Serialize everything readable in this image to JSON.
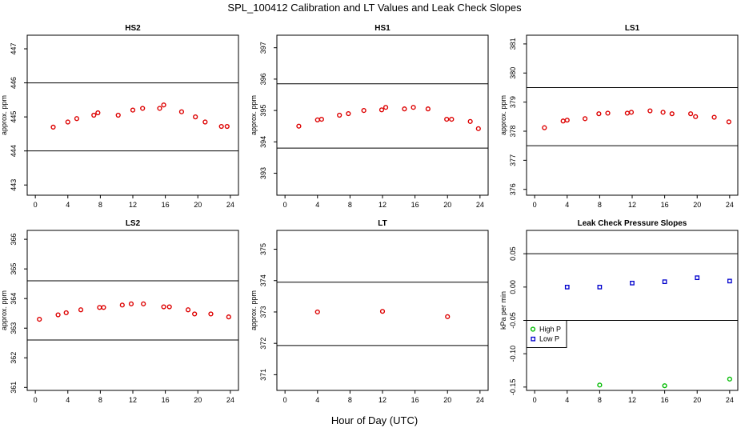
{
  "title": "SPL_100412  Calibration and LT Values and Leak Check Slopes",
  "xlabel": "Hour of Day (UTC)",
  "colors": {
    "cal_points": "#dd0000",
    "high_p": "#00bb00",
    "low_p": "#0000cc",
    "ref_lines": "#000000"
  },
  "chart_data": [
    {
      "type": "scatter",
      "title": "HS2",
      "ylabel": "approx. ppm",
      "xlim": [
        -1,
        25
      ],
      "xticks": [
        0,
        4,
        8,
        12,
        16,
        20,
        24
      ],
      "ylim": [
        442.7,
        447.4
      ],
      "yticks": [
        443,
        444,
        445,
        446,
        447
      ],
      "hlines": [
        446.0,
        444.0
      ],
      "series": [
        {
          "x": [
            2.2,
            4.0,
            5.1,
            7.2,
            7.7,
            10.2,
            12.0,
            13.2,
            15.3,
            15.8,
            18.0,
            19.7,
            20.9,
            22.9,
            23.6
          ],
          "y": [
            444.7,
            444.85,
            444.95,
            445.05,
            445.12,
            445.05,
            445.2,
            445.25,
            445.25,
            445.35,
            445.15,
            445.0,
            444.85,
            444.72,
            444.72
          ]
        }
      ]
    },
    {
      "type": "scatter",
      "title": "HS1",
      "ylabel": "approx. ppm",
      "xlim": [
        -1,
        25
      ],
      "xticks": [
        0,
        4,
        8,
        12,
        16,
        20,
        24
      ],
      "ylim": [
        392.3,
        397.4
      ],
      "yticks": [
        393,
        394,
        395,
        396,
        397
      ],
      "hlines": [
        395.85,
        393.8
      ],
      "series": [
        {
          "x": [
            1.7,
            4.0,
            4.5,
            6.7,
            7.8,
            9.7,
            11.9,
            12.4,
            14.7,
            15.8,
            17.6,
            19.9,
            20.5,
            22.8,
            23.8
          ],
          "y": [
            394.5,
            394.7,
            394.72,
            394.85,
            394.9,
            395.0,
            395.02,
            395.1,
            395.05,
            395.1,
            395.05,
            394.72,
            394.72,
            394.65,
            394.42
          ]
        }
      ]
    },
    {
      "type": "scatter",
      "title": "LS1",
      "ylabel": "approx. ppm",
      "xlim": [
        -1,
        25
      ],
      "xticks": [
        0,
        4,
        8,
        12,
        16,
        20,
        24
      ],
      "ylim": [
        375.8,
        381.3
      ],
      "yticks": [
        376,
        377,
        378,
        379,
        380,
        381
      ],
      "hlines": [
        379.5,
        377.5
      ],
      "series": [
        {
          "x": [
            1.2,
            3.5,
            4.0,
            6.2,
            7.9,
            9.0,
            11.4,
            11.9,
            14.2,
            15.8,
            16.9,
            19.2,
            19.8,
            22.1,
            23.9
          ],
          "y": [
            378.12,
            378.35,
            378.38,
            378.43,
            378.6,
            378.62,
            378.62,
            378.65,
            378.7,
            378.65,
            378.6,
            378.6,
            378.5,
            378.48,
            378.32
          ]
        }
      ]
    },
    {
      "type": "scatter",
      "title": "LS2",
      "ylabel": "approx. ppm",
      "xlim": [
        -1,
        25
      ],
      "xticks": [
        0,
        4,
        8,
        12,
        16,
        20,
        24
      ],
      "ylim": [
        360.9,
        366.3
      ],
      "yticks": [
        361,
        362,
        363,
        364,
        365,
        366
      ],
      "hlines": [
        364.6,
        362.6
      ],
      "series": [
        {
          "x": [
            0.5,
            2.8,
            3.8,
            5.6,
            7.9,
            8.4,
            10.7,
            11.8,
            13.3,
            15.8,
            16.5,
            18.8,
            19.6,
            21.6,
            23.8
          ],
          "y": [
            363.3,
            363.45,
            363.52,
            363.62,
            363.7,
            363.7,
            363.78,
            363.82,
            363.82,
            363.72,
            363.72,
            363.62,
            363.48,
            363.48,
            363.38
          ]
        }
      ]
    },
    {
      "type": "scatter",
      "title": "LT",
      "ylabel": "approx. ppm",
      "xlim": [
        -1,
        25
      ],
      "xticks": [
        0,
        4,
        8,
        12,
        16,
        20,
        24
      ],
      "ylim": [
        370.5,
        375.6
      ],
      "yticks": [
        371,
        372,
        373,
        374,
        375
      ],
      "hlines": [
        373.95,
        371.93
      ],
      "series": [
        {
          "x": [
            4.0,
            12.0,
            20.0
          ],
          "y": [
            373.0,
            373.02,
            372.85
          ]
        }
      ]
    },
    {
      "type": "scatter",
      "title": "Leak Check Pressure Slopes",
      "ylabel": "kPa per min",
      "xlim": [
        -1,
        25
      ],
      "xticks": [
        0,
        4,
        8,
        12,
        16,
        20,
        24
      ],
      "ylim": [
        -0.155,
        0.085
      ],
      "yticks": [
        -0.15,
        -0.1,
        -0.05,
        0.0,
        0.05
      ],
      "ytick_labels": [
        "-0.15",
        "-0.10",
        "-0.05",
        "0.00",
        "0.05"
      ],
      "hlines": [
        0.05,
        -0.05
      ],
      "legend": {
        "position": "left",
        "entries": [
          "High P",
          "Low P"
        ]
      },
      "series": [
        {
          "name": "High P",
          "x": [
            8,
            16,
            24
          ],
          "y": [
            -0.147,
            -0.148,
            -0.138
          ]
        },
        {
          "name": "Low P",
          "x": [
            4,
            8,
            12,
            16,
            20,
            24
          ],
          "y": [
            0.0,
            0.0,
            0.006,
            0.008,
            0.014,
            0.009
          ]
        }
      ]
    }
  ]
}
